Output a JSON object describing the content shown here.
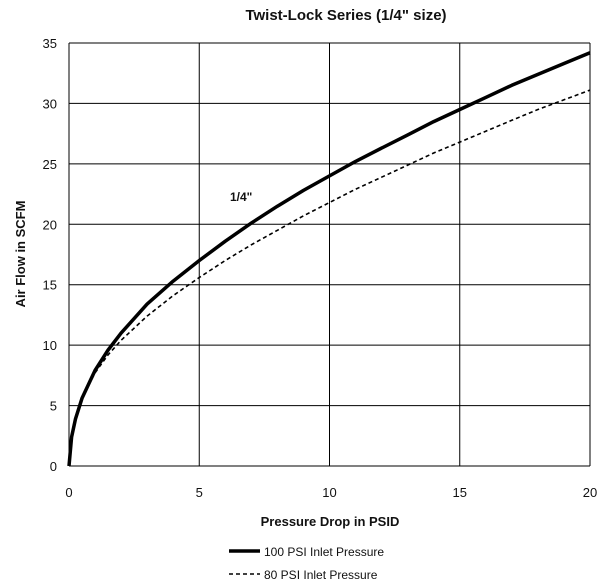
{
  "chart_data": {
    "type": "line",
    "title": "Twist-Lock Series (1/4\" size)",
    "xlabel": "Pressure Drop in PSID",
    "ylabel": "Air Flow in SCFM",
    "xlim": [
      0,
      20
    ],
    "ylim": [
      0,
      35
    ],
    "xticks": [
      0,
      5,
      10,
      15,
      20
    ],
    "yticks": [
      0,
      5,
      10,
      15,
      20,
      25,
      30,
      35
    ],
    "grid": true,
    "legend_position": "bottom-center",
    "annotation": "1/4\"",
    "series": [
      {
        "name": "100 PSI Inlet Pressure",
        "style": "solid",
        "x": [
          0,
          0.1,
          0.25,
          0.5,
          1,
          1.5,
          2,
          3,
          4,
          5,
          6,
          7,
          8,
          9,
          10,
          11,
          12,
          13,
          14,
          15,
          16,
          17,
          18,
          19,
          20
        ],
        "y": [
          0,
          2.4,
          3.9,
          5.6,
          7.9,
          9.6,
          11.0,
          13.4,
          15.3,
          17.0,
          18.6,
          20.1,
          21.5,
          22.8,
          24.0,
          25.2,
          26.3,
          27.4,
          28.5,
          29.5,
          30.5,
          31.5,
          32.4,
          33.3,
          34.2
        ]
      },
      {
        "name": "80 PSI Inlet Pressure",
        "style": "dashed",
        "x": [
          0,
          0.1,
          0.25,
          0.5,
          1,
          1.5,
          2,
          3,
          4,
          5,
          6,
          7,
          8,
          9,
          10,
          11,
          12,
          13,
          14,
          15,
          16,
          17,
          18,
          19,
          20
        ],
        "y": [
          0,
          2.5,
          4.0,
          5.6,
          7.7,
          9.2,
          10.4,
          12.4,
          14.1,
          15.6,
          17.0,
          18.3,
          19.5,
          20.7,
          21.8,
          22.9,
          23.9,
          24.9,
          25.9,
          26.8,
          27.7,
          28.6,
          29.5,
          30.3,
          31.1
        ]
      }
    ]
  }
}
